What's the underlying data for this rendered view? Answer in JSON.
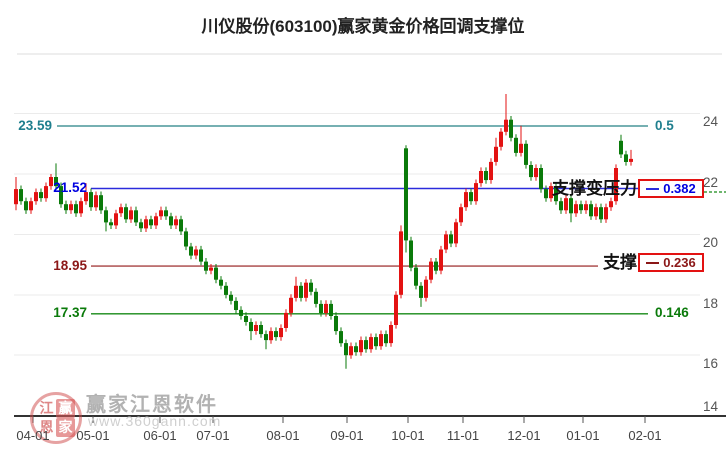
{
  "title": "川仪股份(603100)赢家黄金价格回调支撑位",
  "watermark": {
    "brand": "赢家江恩软件",
    "url": "www.360gann.com",
    "logo_chars": [
      "江",
      "赢",
      "恩",
      "家"
    ]
  },
  "levels": [
    {
      "price": "23.59",
      "ratio": "0.5",
      "annotation": "",
      "text_color": "#1f7f8e",
      "line_color": "#76b0b2",
      "boxed": false
    },
    {
      "price": "21.52",
      "ratio": "0.382",
      "annotation": "支撑变压力",
      "text_color": "#0000e0",
      "line_color": "#2b2bdc",
      "boxed": true
    },
    {
      "price": "18.95",
      "ratio": "0.236",
      "annotation": "支撑",
      "text_color": "#8b1717",
      "line_color": "#a64040",
      "boxed": true
    },
    {
      "price": "17.37",
      "ratio": "0.146",
      "annotation": "",
      "text_color": "#0a7a0a",
      "line_color": "#178a17",
      "boxed": false
    }
  ],
  "y_axis": {
    "labels": [
      "24",
      "22",
      "20",
      "18",
      "16",
      "14"
    ]
  },
  "x_axis": {
    "labels": [
      "04-01",
      "05-01",
      "06-01",
      "07-01",
      "08-01",
      "09-01",
      "10-01",
      "11-01",
      "12-01",
      "01-01",
      "02-01"
    ]
  },
  "colors": {
    "up": "#e31212",
    "down": "#0a7a0a",
    "grid": "#ebebeb",
    "top_border": "#dedede",
    "axis": "#333333",
    "box_border": "#e31212"
  },
  "chart_data": {
    "type": "candlestick",
    "title": "川仪股份(603100)赢家黄金价格回调支撑位",
    "ylabel": "price",
    "ylim": [
      14,
      24.3
    ],
    "grid": true,
    "y_gridlines": [
      24,
      22,
      20,
      18,
      16
    ],
    "fib_levels": [
      {
        "ratio": 0.5,
        "price": 23.59
      },
      {
        "ratio": 0.382,
        "price": 21.52
      },
      {
        "ratio": 0.236,
        "price": 18.95
      },
      {
        "ratio": 0.146,
        "price": 17.37
      }
    ],
    "x_tick_labels": [
      "04-01",
      "05-01",
      "06-01",
      "07-01",
      "08-01",
      "09-01",
      "10-01",
      "11-01",
      "12-01",
      "01-01",
      "02-01"
    ],
    "up_color_convention": "red-up-green-down",
    "candles_ohlc": [
      [
        21.0,
        21.9,
        20.8,
        21.5
      ],
      [
        21.5,
        21.62,
        20.98,
        21.1
      ],
      [
        21.1,
        21.22,
        20.68,
        20.8
      ],
      [
        20.8,
        21.22,
        20.68,
        21.1
      ],
      [
        21.1,
        21.52,
        20.98,
        21.4
      ],
      [
        21.4,
        21.52,
        21.08,
        21.2
      ],
      [
        21.2,
        21.72,
        21.08,
        21.6
      ],
      [
        21.6,
        22.0,
        21.48,
        21.9
      ],
      [
        21.9,
        22.35,
        21.48,
        21.6
      ],
      [
        21.6,
        21.72,
        20.88,
        21.0
      ],
      [
        21.0,
        21.12,
        20.68,
        20.8
      ],
      [
        20.8,
        21.12,
        20.68,
        21.0
      ],
      [
        21.0,
        21.12,
        20.58,
        20.7
      ],
      [
        20.7,
        21.22,
        20.58,
        21.1
      ],
      [
        21.1,
        21.7,
        20.98,
        21.4
      ],
      [
        21.4,
        21.52,
        20.78,
        20.9
      ],
      [
        20.9,
        21.42,
        20.78,
        21.3
      ],
      [
        21.3,
        21.42,
        20.68,
        20.8
      ],
      [
        20.8,
        20.92,
        20.1,
        20.4
      ],
      [
        20.4,
        20.52,
        20.18,
        20.3
      ],
      [
        20.3,
        20.82,
        20.18,
        20.7
      ],
      [
        20.7,
        21.02,
        20.58,
        20.9
      ],
      [
        20.9,
        21.02,
        20.38,
        20.5
      ],
      [
        20.5,
        20.92,
        20.38,
        20.8
      ],
      [
        20.8,
        20.92,
        20.28,
        20.4
      ],
      [
        20.4,
        20.52,
        20.08,
        20.2
      ],
      [
        20.2,
        20.62,
        20.08,
        20.5
      ],
      [
        20.5,
        20.62,
        20.18,
        20.3
      ],
      [
        20.3,
        20.72,
        20.18,
        20.6
      ],
      [
        20.6,
        20.92,
        20.48,
        20.8
      ],
      [
        20.8,
        20.92,
        20.48,
        20.6
      ],
      [
        20.6,
        20.72,
        20.18,
        20.3
      ],
      [
        20.3,
        20.62,
        20.18,
        20.5
      ],
      [
        20.5,
        20.62,
        19.98,
        20.1
      ],
      [
        20.1,
        20.22,
        19.48,
        19.6
      ],
      [
        19.6,
        19.72,
        19.18,
        19.3
      ],
      [
        19.3,
        19.62,
        19.18,
        19.5
      ],
      [
        19.5,
        19.62,
        18.98,
        19.1
      ],
      [
        19.1,
        19.22,
        18.68,
        18.8
      ],
      [
        18.8,
        19.02,
        18.68,
        18.9
      ],
      [
        18.9,
        19.02,
        18.38,
        18.5
      ],
      [
        18.5,
        18.62,
        18.18,
        18.3
      ],
      [
        18.3,
        18.42,
        17.88,
        18.0
      ],
      [
        18.0,
        18.12,
        17.68,
        17.8
      ],
      [
        17.8,
        17.92,
        17.38,
        17.5
      ],
      [
        17.5,
        17.62,
        17.18,
        17.3
      ],
      [
        17.3,
        17.42,
        16.98,
        17.1
      ],
      [
        17.1,
        17.22,
        16.5,
        16.8
      ],
      [
        16.8,
        17.12,
        16.68,
        17.0
      ],
      [
        17.0,
        17.12,
        16.58,
        16.7
      ],
      [
        16.7,
        16.82,
        16.2,
        16.5
      ],
      [
        16.5,
        16.92,
        16.38,
        16.8
      ],
      [
        16.8,
        16.92,
        16.48,
        16.6
      ],
      [
        16.6,
        17.02,
        16.48,
        16.9
      ],
      [
        16.9,
        17.52,
        16.78,
        17.4
      ],
      [
        17.4,
        18.02,
        17.28,
        17.9
      ],
      [
        17.9,
        18.6,
        17.78,
        18.3
      ],
      [
        18.3,
        18.42,
        17.78,
        17.9
      ],
      [
        17.9,
        18.52,
        17.78,
        18.4
      ],
      [
        18.4,
        18.52,
        17.98,
        18.1
      ],
      [
        18.1,
        18.22,
        17.58,
        17.7
      ],
      [
        17.7,
        17.82,
        17.28,
        17.4
      ],
      [
        17.4,
        17.82,
        17.28,
        17.7
      ],
      [
        17.7,
        17.82,
        17.18,
        17.3
      ],
      [
        17.3,
        17.42,
        16.68,
        16.8
      ],
      [
        16.8,
        16.92,
        16.28,
        16.4
      ],
      [
        16.4,
        16.52,
        15.55,
        16.0
      ],
      [
        16.0,
        16.42,
        15.88,
        16.3
      ],
      [
        16.3,
        16.42,
        15.98,
        16.1
      ],
      [
        16.1,
        16.62,
        15.98,
        16.5
      ],
      [
        16.5,
        16.62,
        16.08,
        16.2
      ],
      [
        16.2,
        16.72,
        16.08,
        16.6
      ],
      [
        16.6,
        16.72,
        16.18,
        16.3
      ],
      [
        16.3,
        16.82,
        16.18,
        16.7
      ],
      [
        16.7,
        16.82,
        16.28,
        16.4
      ],
      [
        16.4,
        17.12,
        16.28,
        17.0
      ],
      [
        17.0,
        18.12,
        16.88,
        18.0
      ],
      [
        18.0,
        20.3,
        17.88,
        20.1
      ],
      [
        22.85,
        22.95,
        19.4,
        19.8
      ],
      [
        19.8,
        19.92,
        18.78,
        18.9
      ],
      [
        18.9,
        19.02,
        18.18,
        18.3
      ],
      [
        18.3,
        18.42,
        17.6,
        17.9
      ],
      [
        17.9,
        18.62,
        17.78,
        18.5
      ],
      [
        18.5,
        19.22,
        18.38,
        19.1
      ],
      [
        19.1,
        19.22,
        18.68,
        18.8
      ],
      [
        18.8,
        19.62,
        18.68,
        19.5
      ],
      [
        19.5,
        20.12,
        19.38,
        20.0
      ],
      [
        20.0,
        20.12,
        19.58,
        19.7
      ],
      [
        19.7,
        20.52,
        19.58,
        20.4
      ],
      [
        20.4,
        21.02,
        20.28,
        20.9
      ],
      [
        20.9,
        21.52,
        20.78,
        21.4
      ],
      [
        21.4,
        21.52,
        20.98,
        21.1
      ],
      [
        21.1,
        21.82,
        20.98,
        21.7
      ],
      [
        21.7,
        22.22,
        21.58,
        22.1
      ],
      [
        22.1,
        22.22,
        21.68,
        21.8
      ],
      [
        21.8,
        22.52,
        21.68,
        22.4
      ],
      [
        22.4,
        23.2,
        22.28,
        22.9
      ],
      [
        22.9,
        23.52,
        22.78,
        23.4
      ],
      [
        23.4,
        24.65,
        23.28,
        23.8
      ],
      [
        23.8,
        23.92,
        23.08,
        23.2
      ],
      [
        23.2,
        23.32,
        22.58,
        22.7
      ],
      [
        22.7,
        23.6,
        22.58,
        23.0
      ],
      [
        23.0,
        23.12,
        22.18,
        22.3
      ],
      [
        22.3,
        22.42,
        21.78,
        21.9
      ],
      [
        21.9,
        22.32,
        21.78,
        22.2
      ],
      [
        22.2,
        22.32,
        21.38,
        21.5
      ],
      [
        21.5,
        21.62,
        21.08,
        21.2
      ],
      [
        21.2,
        21.72,
        21.08,
        21.6
      ],
      [
        21.6,
        21.72,
        20.98,
        21.1
      ],
      [
        21.1,
        21.22,
        20.68,
        20.8
      ],
      [
        20.8,
        21.32,
        20.68,
        21.2
      ],
      [
        21.2,
        21.32,
        20.4,
        20.7
      ],
      [
        20.7,
        21.12,
        20.58,
        21.0
      ],
      [
        21.0,
        21.12,
        20.68,
        20.8
      ],
      [
        20.8,
        21.12,
        20.68,
        21.0
      ],
      [
        21.0,
        21.12,
        20.48,
        20.6
      ],
      [
        20.6,
        21.02,
        20.48,
        20.9
      ],
      [
        20.9,
        21.02,
        20.38,
        20.5
      ],
      [
        20.5,
        21.02,
        20.38,
        20.9
      ],
      [
        20.9,
        21.22,
        20.78,
        21.1
      ],
      [
        21.1,
        22.32,
        20.98,
        22.2
      ],
      [
        23.1,
        23.3,
        22.53,
        22.65
      ],
      [
        22.65,
        22.77,
        22.28,
        22.4
      ],
      [
        22.4,
        22.8,
        22.28,
        22.5
      ]
    ]
  }
}
